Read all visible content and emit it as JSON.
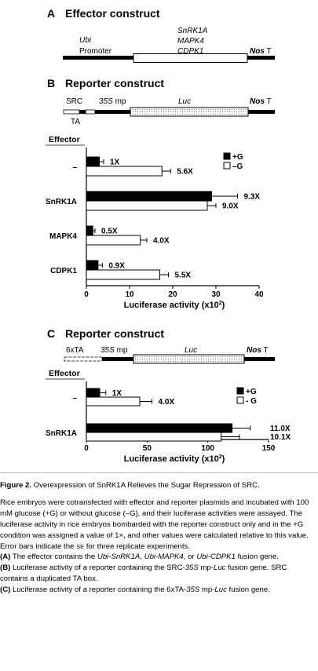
{
  "panel_a": {
    "letter": "A",
    "title": "Effector construct",
    "promoter_name": "Ubi",
    "promoter_label": "Promoter",
    "genes": [
      "SnRK1A",
      "MAPK4",
      "CDPK1"
    ],
    "terminator_name": "Nos",
    "terminator_suffix": "T"
  },
  "panel_b": {
    "letter": "B",
    "title": "Reporter construct",
    "src_label": "SRC",
    "ta_label": "TA",
    "mp_name": "35S",
    "mp_suffix": "mp",
    "luc_label": "Luc",
    "terminator_name": "Nos",
    "terminator_suffix": "T",
    "effector_header": "Effector"
  },
  "panel_c": {
    "letter": "C",
    "title": "Reporter construct",
    "tata_label": "6xTA",
    "mp_name": "35S",
    "mp_suffix": "mp",
    "luc_label": "Luc",
    "terminator_name": "Nos",
    "terminator_suffix": "T",
    "effector_header": "Effector"
  },
  "chart_data": [
    {
      "type": "bar",
      "orientation": "horizontal",
      "categories": [
        "–",
        "SnRK1A",
        "MAPK4",
        "CDPK1"
      ],
      "series": [
        {
          "name": "+G",
          "color": "#000000",
          "values": [
            3,
            29,
            1.5,
            2.7
          ],
          "errors": [
            1,
            6,
            0.5,
            1
          ],
          "labels": [
            "1X",
            "9.3X",
            "0.5X",
            "0.9X"
          ]
        },
        {
          "name": "–G",
          "color": "#ffffff",
          "values": [
            17.5,
            28,
            12.5,
            17
          ],
          "errors": [
            2,
            2,
            1.5,
            2
          ],
          "labels": [
            "5.6X",
            "9.0X",
            "4.0X",
            "5.5X"
          ]
        }
      ],
      "xlabel": "Luciferase activity (x10",
      "xlabel_sup": "2",
      "xlabel_close": ")",
      "xlim": [
        0,
        40
      ],
      "xticks": [
        0,
        10,
        20,
        30,
        40
      ],
      "legend_position": "top-right",
      "grid": false
    },
    {
      "type": "bar",
      "orientation": "horizontal",
      "categories": [
        "–",
        "SnRK1A"
      ],
      "series": [
        {
          "name": "+G",
          "color": "#000000",
          "values": [
            11,
            120
          ],
          "errors": [
            5,
            15
          ],
          "labels": [
            "1X",
            "11.0X"
          ]
        },
        {
          "name": "- G",
          "color": "#ffffff",
          "values": [
            44,
            111
          ],
          "errors": [
            10,
            15
          ],
          "labels": [
            "4.0X",
            "10.1X"
          ]
        }
      ],
      "xlabel": "Luciferase activity (x10",
      "xlabel_sup": "2",
      "xlabel_close": ")",
      "xlim": [
        0,
        150
      ],
      "xticks": [
        0,
        50,
        100,
        150
      ],
      "legend_position": "top-right",
      "grid": false
    }
  ],
  "caption": {
    "title_bold": "Figure 2.",
    "title_rest": "Overexpression of SnRK1A Relieves the Sugar Repression of SRC.",
    "body_1": "Rice embryos were cotransfected with effector and reporter plasmids and incubated with 100 mM glucose (+G) or without glucose (–G), and their luciferase activities were assayed. The luciferase activity in rice embryos bombarded with the reporter construct only and in the +G condition was assigned a value of 1×, and other values were calculated relative to this value. Error bars indicate the",
    "body_se": "SE",
    "body_2": "for three replicate experiments.",
    "a_label": "(A)",
    "a_text_1": "The effector contains the",
    "a_gene_1": "Ubi-SnRK1A",
    "a_sep_1": ",",
    "a_gene_2": "Ubi-MAPK4",
    "a_sep_2": ", or",
    "a_gene_3": "Ubi-CDPK1",
    "a_text_2": "fusion gene.",
    "b_label": "(B)",
    "b_text_1": "Luciferase activity of a reporter containing the SRC-",
    "b_gene": "35S",
    "b_text_2": "mp-",
    "b_luc": "Luc",
    "b_text_3": "fusion gene. SRC contains a duplicated TA box.",
    "c_label": "(C)",
    "c_text_1": "Luciferase activity of a reporter containing the 6xTA-",
    "c_gene": "35S",
    "c_text_2": "mp-",
    "c_luc": "Luc",
    "c_text_3": "fusion gene."
  }
}
